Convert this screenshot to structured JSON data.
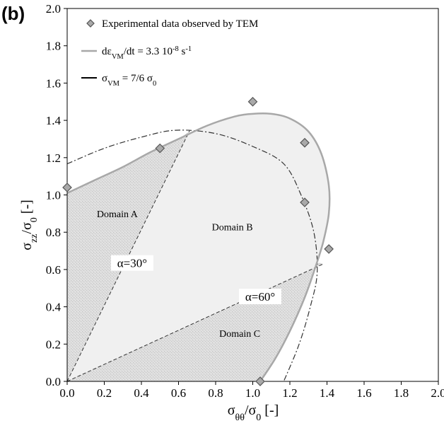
{
  "panel_label": "(b)",
  "colors": {
    "stipple_fill": "#d8d8d8",
    "light_fill": "#f0f0f0",
    "curve_gray": "#a8a8a8",
    "marker_fill": "#a9a9a9",
    "marker_stroke": "#555555"
  },
  "chart_data": {
    "type": "scatter",
    "xlabel": "σθθ/σ0 [-]",
    "ylabel": "σzz/σ0 [-]",
    "xlim": [
      0,
      2.0
    ],
    "ylim": [
      0,
      2.0
    ],
    "x_ticks": [
      "0.0",
      "0.2",
      "0.4",
      "0.6",
      "0.8",
      "1.0",
      "1.2",
      "1.4",
      "1.6",
      "1.8",
      "2.0"
    ],
    "y_ticks": [
      "0.0",
      "0.2",
      "0.4",
      "0.6",
      "0.8",
      "1.0",
      "1.2",
      "1.4",
      "1.6",
      "1.8",
      "2.0"
    ],
    "grid": false,
    "legend_position": "top-left",
    "legend": [
      {
        "label": "Experimental data observed by TEM",
        "marker": "diamond"
      },
      {
        "label": "dεVM/dt = 3.3 10-8 s-1",
        "style": "solid-gray"
      },
      {
        "label": "σVM = 7/6 σ0",
        "style": "dash-dot-black"
      }
    ],
    "series": [
      {
        "name": "Experimental data observed by TEM",
        "points": [
          {
            "x": 0.0,
            "y": 1.04
          },
          {
            "x": 0.5,
            "y": 1.25
          },
          {
            "x": 1.0,
            "y": 1.5
          },
          {
            "x": 1.28,
            "y": 1.28
          },
          {
            "x": 1.28,
            "y": 0.96
          },
          {
            "x": 1.41,
            "y": 0.71
          },
          {
            "x": 1.04,
            "y": 0.0
          }
        ]
      },
      {
        "name": "dεVM/dt = 3.3 10-8 s-1",
        "points": [
          {
            "x": 0.0,
            "y": 1.01
          },
          {
            "x": 0.15,
            "y": 1.08
          },
          {
            "x": 0.3,
            "y": 1.15
          },
          {
            "x": 0.45,
            "y": 1.23
          },
          {
            "x": 0.6,
            "y": 1.3
          },
          {
            "x": 0.75,
            "y": 1.37
          },
          {
            "x": 0.9,
            "y": 1.42
          },
          {
            "x": 1.0,
            "y": 1.435
          },
          {
            "x": 1.1,
            "y": 1.435
          },
          {
            "x": 1.2,
            "y": 1.41
          },
          {
            "x": 1.3,
            "y": 1.34
          },
          {
            "x": 1.37,
            "y": 1.22
          },
          {
            "x": 1.41,
            "y": 1.05
          },
          {
            "x": 1.41,
            "y": 0.9
          },
          {
            "x": 1.38,
            "y": 0.75
          },
          {
            "x": 1.34,
            "y": 0.62
          },
          {
            "x": 1.28,
            "y": 0.45
          },
          {
            "x": 1.2,
            "y": 0.27
          },
          {
            "x": 1.12,
            "y": 0.12
          },
          {
            "x": 1.04,
            "y": 0.0
          }
        ]
      },
      {
        "name": "σVM = 7/6 σ0",
        "points": [
          {
            "x": 0.0,
            "y": 1.167
          },
          {
            "x": 0.2,
            "y": 1.25
          },
          {
            "x": 0.4,
            "y": 1.31
          },
          {
            "x": 0.583,
            "y": 1.347
          },
          {
            "x": 0.8,
            "y": 1.329
          },
          {
            "x": 1.0,
            "y": 1.26
          },
          {
            "x": 1.167,
            "y": 1.167
          },
          {
            "x": 1.26,
            "y": 1.0
          },
          {
            "x": 1.329,
            "y": 0.8
          },
          {
            "x": 1.347,
            "y": 0.583
          },
          {
            "x": 1.31,
            "y": 0.4
          },
          {
            "x": 1.25,
            "y": 0.2
          },
          {
            "x": 1.167,
            "y": 0.0
          }
        ]
      }
    ],
    "annotations": [
      {
        "text": "Domain A",
        "x": 0.27,
        "y": 0.88
      },
      {
        "text": "Domain B",
        "x": 0.89,
        "y": 0.81
      },
      {
        "text": "Domain C",
        "x": 0.93,
        "y": 0.24
      },
      {
        "text": "α=30°",
        "x": 0.35,
        "y": 0.62
      },
      {
        "text": "α=60°",
        "x": 1.04,
        "y": 0.44
      }
    ],
    "reference_lines": [
      {
        "name": "α=30°",
        "from": [
          0,
          0
        ],
        "to": [
          0.66,
          1.345
        ]
      },
      {
        "name": "α=60°",
        "from": [
          0,
          0
        ],
        "to": [
          1.38,
          0.63
        ]
      }
    ]
  }
}
